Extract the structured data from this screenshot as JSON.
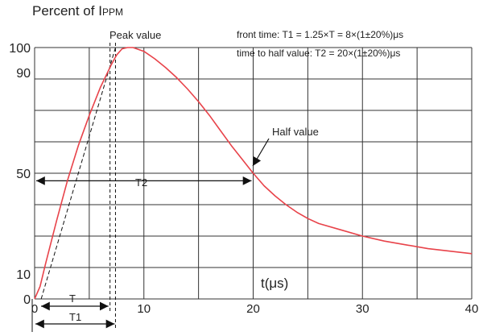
{
  "chart_data": {
    "type": "line",
    "ylabel_prefix": "Percent of I",
    "ylabel_sub": "PPM",
    "xlabel": "t(μs)",
    "xlim": [
      0,
      40
    ],
    "ylim": [
      0,
      100
    ],
    "x_ticks": [
      {
        "value": 0,
        "label": "0"
      },
      {
        "value": 10,
        "label": "10"
      },
      {
        "value": 20,
        "label": "20"
      },
      {
        "value": 30,
        "label": "30"
      },
      {
        "value": 40,
        "label": "40"
      }
    ],
    "y_ticks": [
      {
        "value": 0,
        "label": "0"
      },
      {
        "value": 10,
        "label": "10"
      },
      {
        "value": 50,
        "label": "50"
      },
      {
        "value": 90,
        "label": "90"
      },
      {
        "value": 100,
        "label": "100"
      }
    ],
    "grid": true,
    "grid_x": [
      0,
      5,
      10,
      15,
      20,
      25,
      30,
      35,
      40
    ],
    "grid_y": [
      0,
      12.5,
      25,
      37.5,
      50,
      62.5,
      75,
      87.5,
      100
    ],
    "series": [
      {
        "color": "#e8434a",
        "x": [
          0,
          0.5,
          1,
          2,
          3,
          4,
          5,
          6,
          7,
          7.5,
          8,
          8.5,
          9,
          10,
          11,
          12,
          13,
          14,
          15,
          16,
          17,
          18,
          19,
          20,
          21,
          22,
          23,
          24,
          25,
          26,
          28,
          30,
          32,
          34,
          36,
          38,
          40
        ],
        "y": [
          0,
          5,
          14,
          31,
          47,
          61,
          73,
          84,
          93,
          97,
          99.5,
          100,
          100,
          98.5,
          95.5,
          92,
          88,
          83.5,
          78.5,
          73,
          67,
          61,
          55.5,
          50,
          45,
          41,
          37.5,
          34.5,
          32,
          30,
          27.5,
          25,
          23,
          21.5,
          20,
          19,
          18
        ]
      }
    ],
    "reference_lines": {
      "front_line": {
        "x": [
          0.6,
          7.4
        ],
        "y": [
          0,
          100
        ]
      },
      "t_marker": 6.9,
      "t1_marker": 7.4,
      "t2_arrow": {
        "x": [
          0,
          20
        ],
        "y": 47
      }
    },
    "annotations": {
      "peak_value": "Peak value",
      "half_value": "Half value",
      "front_time": "front time: T1 = 1.25×T = 8×(1±20%)μs",
      "time_to_half": "time to half value: T2 = 20×(1±20%)μs",
      "t_label": "T",
      "t1_label": "T1",
      "t2_label": "T2"
    }
  }
}
